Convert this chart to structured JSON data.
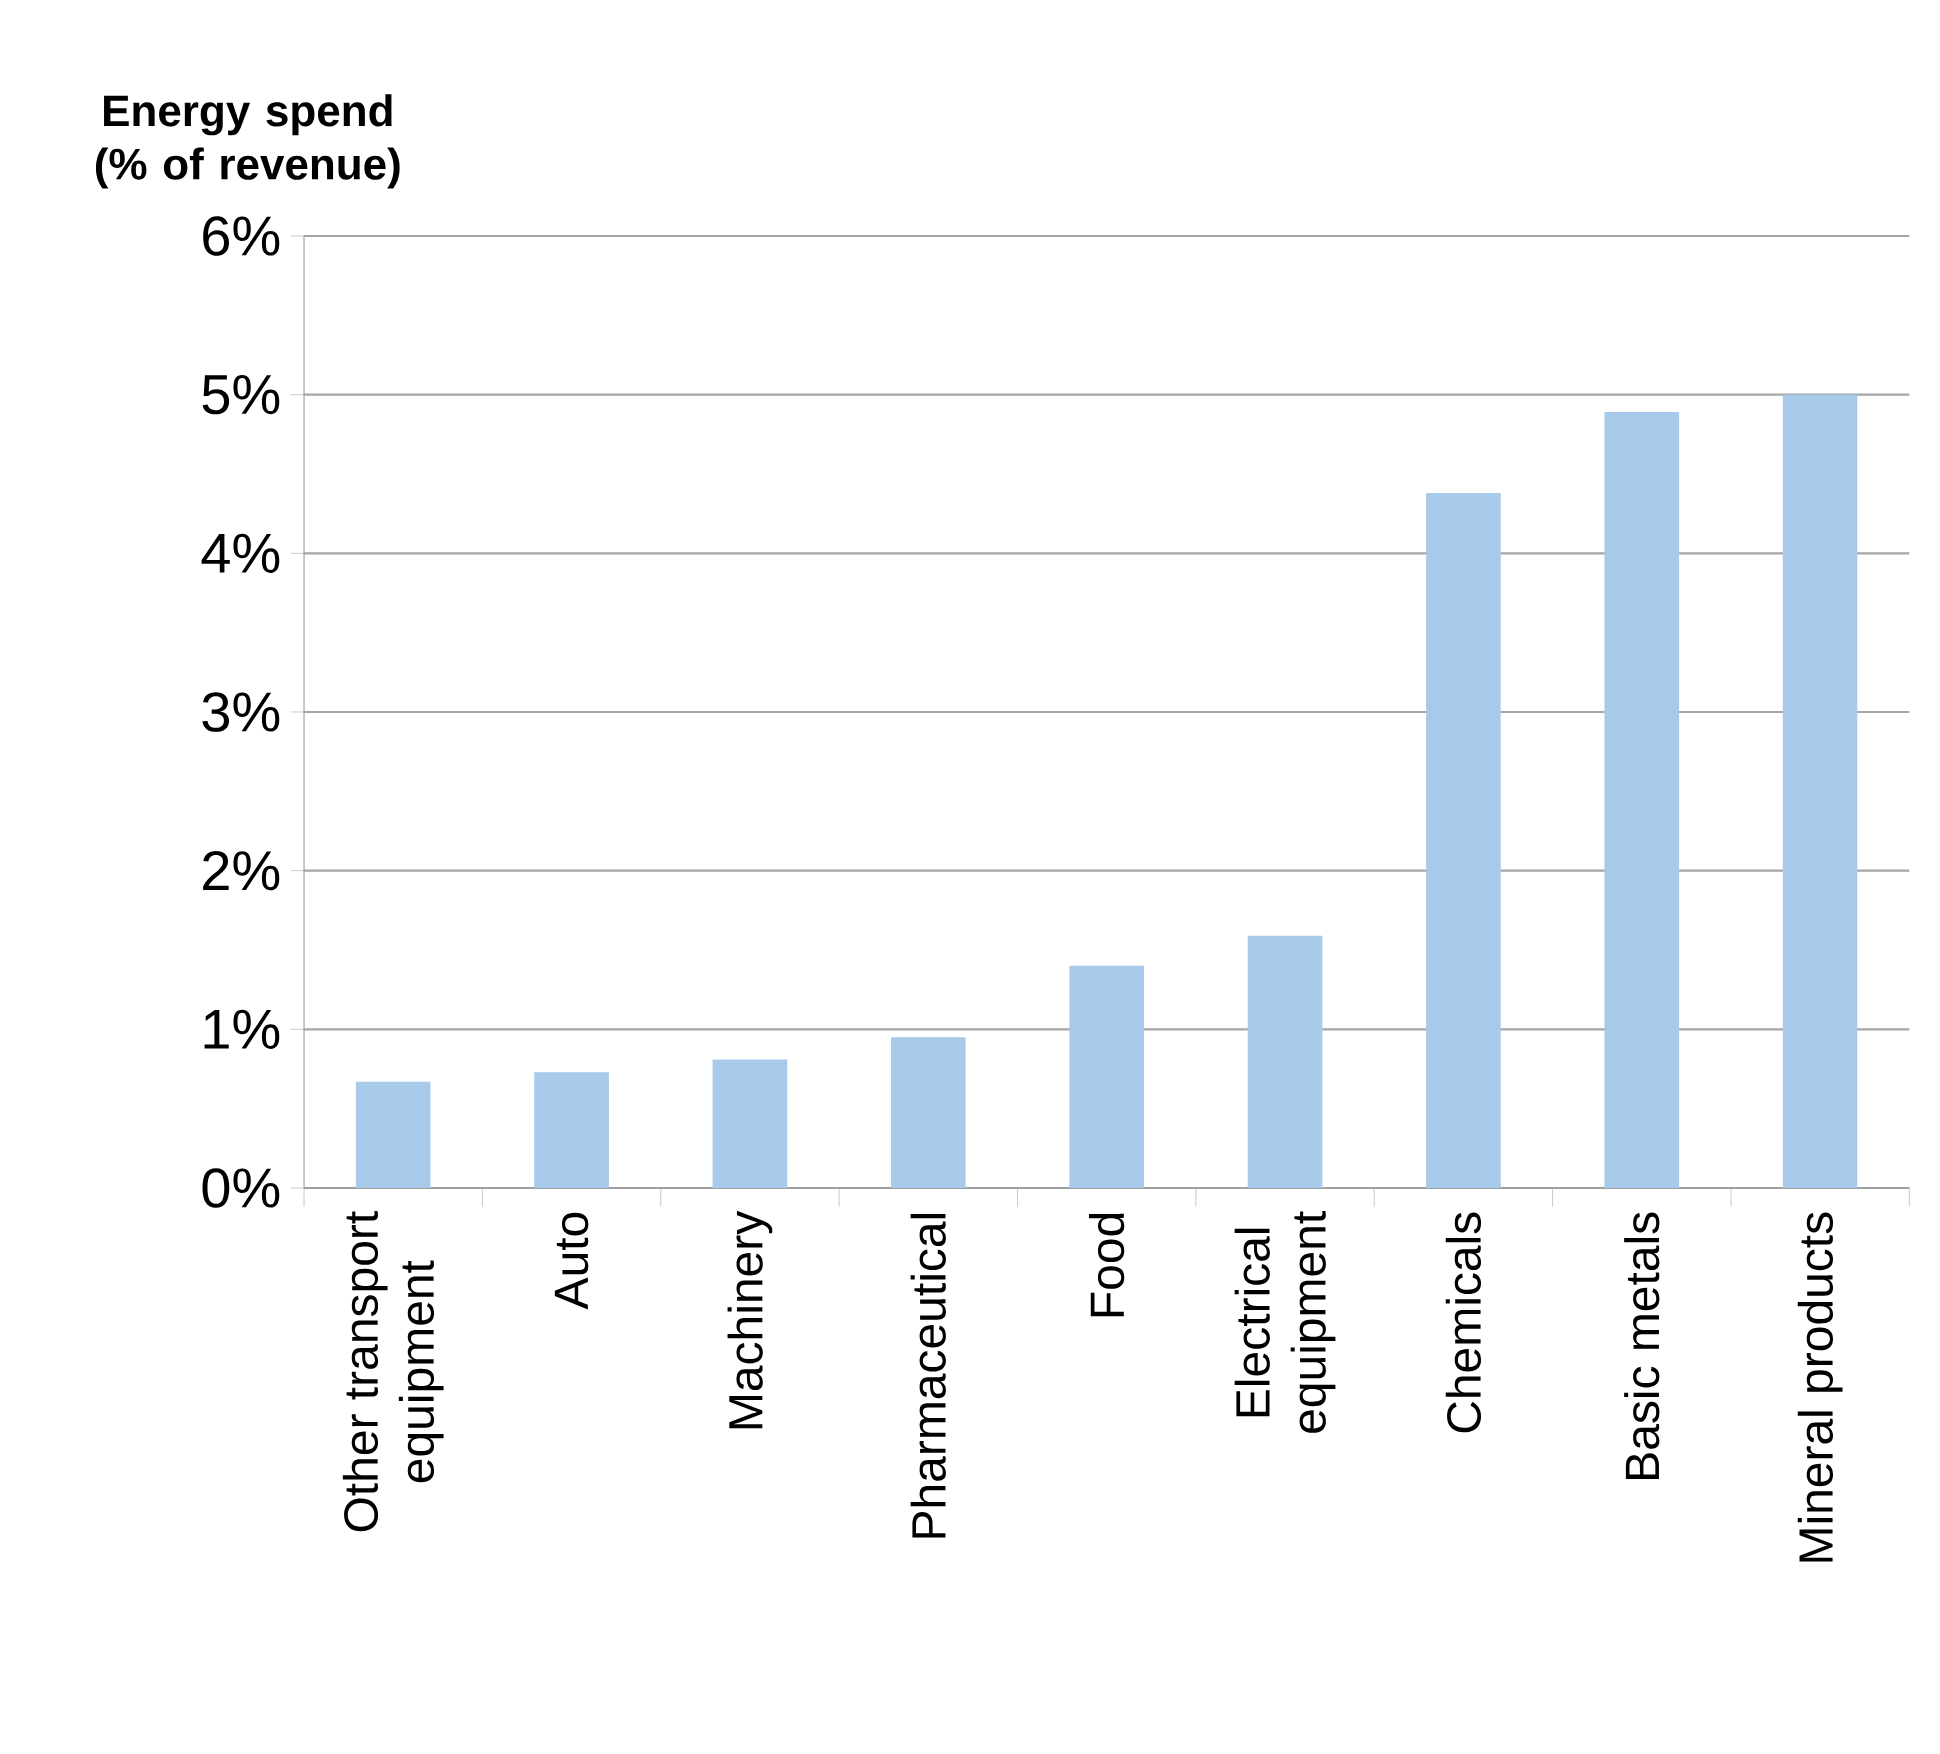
{
  "chart_data": {
    "type": "bar",
    "ylabel": "Energy spend (% of revenue)",
    "categories": [
      "Other transport equipment",
      "Auto",
      "Machinery",
      "Pharmaceutical",
      "Food",
      "Electrical equipment",
      "Chemicals",
      "Basic metals",
      "Mineral products"
    ],
    "values": [
      0.67,
      0.73,
      0.81,
      0.95,
      1.4,
      1.59,
      4.38,
      4.89,
      5.0
    ],
    "color": "#a7c9ea",
    "ylim": [
      0,
      6
    ],
    "yticks": [
      {
        "value": 0,
        "label": "0%"
      },
      {
        "value": 1,
        "label": "1%"
      },
      {
        "value": 2,
        "label": "2%"
      },
      {
        "value": 3,
        "label": "3%"
      },
      {
        "value": 4,
        "label": "4%"
      },
      {
        "value": 5,
        "label": "5%"
      },
      {
        "value": 6,
        "label": "6%"
      }
    ],
    "grid": "y"
  }
}
